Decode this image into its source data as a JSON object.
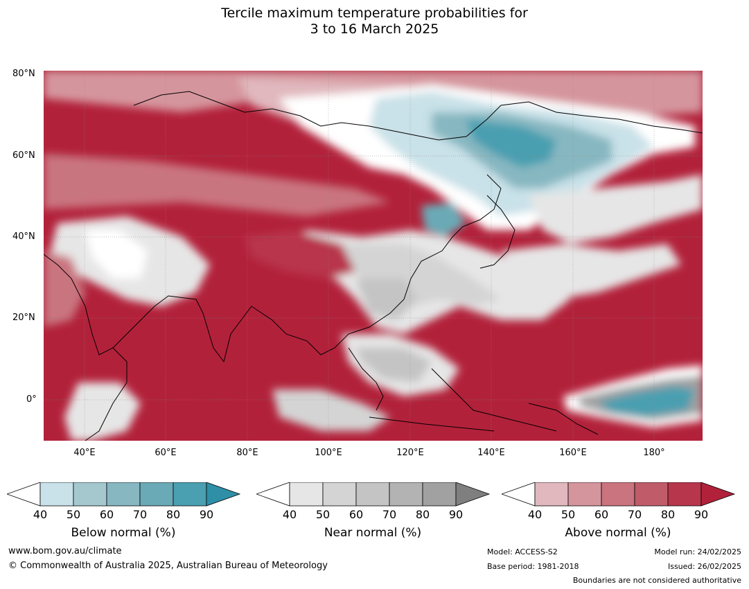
{
  "title": {
    "line1": "Tercile maximum temperature probabilities for",
    "line2": "3 to 16 March 2025"
  },
  "axes": {
    "lat_labels": [
      "80°N",
      "60°N",
      "40°N",
      "20°N",
      "0°"
    ],
    "lon_labels": [
      "40°E",
      "60°E",
      "80°E",
      "100°E",
      "120°E",
      "140°E",
      "160°E",
      "180°"
    ]
  },
  "colorbars": {
    "below": {
      "label": "Below normal (%)",
      "ticks": [
        "40",
        "50",
        "60",
        "70",
        "80",
        "90"
      ],
      "colors": [
        "#ffffff",
        "#c9e1e8",
        "#a5c8cf",
        "#87b7c1",
        "#6aaab6",
        "#4a9fb0",
        "#2e8fa6"
      ]
    },
    "near": {
      "label": "Near normal (%)",
      "ticks": [
        "40",
        "50",
        "60",
        "70",
        "80",
        "90"
      ],
      "colors": [
        "#ffffff",
        "#e6e6e6",
        "#d4d4d4",
        "#c4c4c4",
        "#b3b3b3",
        "#a1a1a1",
        "#7f7f7f"
      ]
    },
    "above": {
      "label": "Above normal (%)",
      "ticks": [
        "40",
        "50",
        "60",
        "70",
        "80",
        "90"
      ],
      "colors": [
        "#ffffff",
        "#e0b8bd",
        "#d5959d",
        "#c9747f",
        "#c05c6a",
        "#b8364c",
        "#b2213a"
      ]
    }
  },
  "footer": {
    "website": "www.bom.gov.au/climate",
    "copyright": "© Commonwealth of Australia 2025, Australian Bureau of Meteorology",
    "model": "Model: ACCESS-S2",
    "base_period": "Base period: 1981-2018",
    "model_run": "Model run: 24/02/2025",
    "issued": "Issued: 26/02/2025",
    "disclaimer": "Boundaries are not considered authoritative"
  }
}
